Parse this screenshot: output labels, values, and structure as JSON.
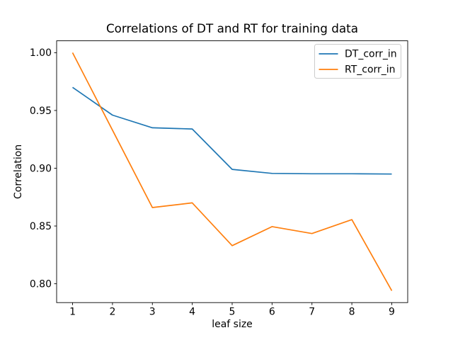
{
  "chart_data": {
    "type": "line",
    "title": "Correlations of DT and RT for training data",
    "xlabel": "leaf size",
    "ylabel": "Correlation",
    "x": [
      1,
      2,
      3,
      4,
      5,
      6,
      7,
      8,
      9
    ],
    "series": [
      {
        "name": "DT_corr_in",
        "color": "#1f77b4",
        "values": [
          0.97,
          0.946,
          0.935,
          0.934,
          0.899,
          0.8955,
          0.8952,
          0.8952,
          0.895
        ]
      },
      {
        "name": "RT_corr_in",
        "color": "#ff7f0e",
        "values": [
          1.0,
          0.933,
          0.866,
          0.87,
          0.833,
          0.8495,
          0.8435,
          0.8555,
          0.794
        ]
      }
    ],
    "xlim": [
      0.6,
      9.4
    ],
    "ylim": [
      0.7837,
      1.0103
    ],
    "x_ticks": [
      1,
      2,
      3,
      4,
      5,
      6,
      7,
      8,
      9
    ],
    "x_tick_labels": [
      "1",
      "2",
      "3",
      "4",
      "5",
      "6",
      "7",
      "8",
      "9"
    ],
    "y_ticks": [
      0.8,
      0.85,
      0.9,
      0.95,
      1.0
    ],
    "y_tick_labels": [
      "0.80",
      "0.85",
      "0.90",
      "0.95",
      "1.00"
    ],
    "legend": {
      "position": "upper right",
      "entries": [
        "DT_corr_in",
        "RT_corr_in"
      ]
    },
    "grid": false,
    "background": "#ffffff",
    "axes_color": "#000000"
  }
}
